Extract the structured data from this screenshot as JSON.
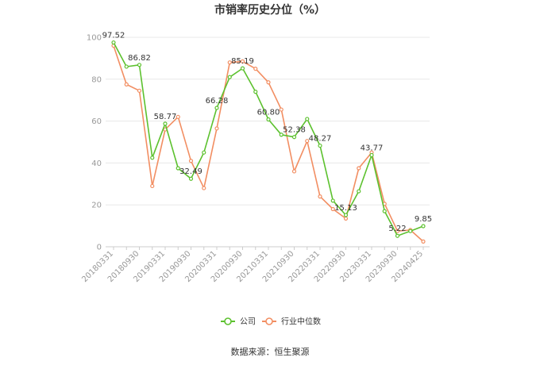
{
  "chart_data": {
    "type": "line",
    "title": "市销率历史分位（%）",
    "source": "数据来源：恒生聚源",
    "ylim": [
      0,
      100
    ],
    "yticks": [
      0,
      20,
      40,
      60,
      80,
      100
    ],
    "grid": true,
    "legend_position": "bottom",
    "x_tick_labels": [
      "20180331",
      "20180930",
      "20190331",
      "20190930",
      "20200331",
      "20200930",
      "20210331",
      "20210930",
      "20220331",
      "20220930",
      "20230331",
      "20230930",
      "20240425"
    ],
    "x": [
      "20180331",
      "20180630",
      "20180930",
      "20181231",
      "20190331",
      "20190630",
      "20190930",
      "20191231",
      "20200331",
      "20200630",
      "20200930",
      "20201231",
      "20210331",
      "20210630",
      "20210930",
      "20211231",
      "20220331",
      "20220630",
      "20220930",
      "20221231",
      "20230331",
      "20230630",
      "20230930",
      "20231231",
      "20240425"
    ],
    "series": [
      {
        "name": "公司",
        "color": "#5cc12e",
        "values": [
          97.52,
          86.0,
          86.82,
          42.5,
          58.77,
          37.5,
          32.49,
          45.0,
          66.28,
          81.0,
          85.19,
          74.0,
          60.8,
          53.5,
          52.38,
          61.0,
          48.27,
          22.0,
          15.13,
          26.5,
          43.77,
          17.0,
          5.22,
          7.5,
          9.85
        ]
      },
      {
        "name": "行业中位数",
        "color": "#f28e62",
        "values": [
          96.0,
          77.5,
          74.5,
          29.0,
          56.0,
          62.0,
          41.0,
          28.0,
          56.5,
          88.0,
          88.5,
          85.0,
          78.5,
          65.5,
          36.0,
          50.5,
          24.0,
          18.0,
          13.5,
          37.5,
          45.0,
          20.5,
          7.5,
          8.0,
          2.5
        ]
      }
    ],
    "data_labels": [
      {
        "index": 0,
        "text": "97.52"
      },
      {
        "index": 2,
        "text": "86.82"
      },
      {
        "index": 4,
        "text": "58.77"
      },
      {
        "index": 6,
        "text": "32.49"
      },
      {
        "index": 8,
        "text": "66.28"
      },
      {
        "index": 10,
        "text": "85.19"
      },
      {
        "index": 12,
        "text": "60.80"
      },
      {
        "index": 14,
        "text": "52.38"
      },
      {
        "index": 16,
        "text": "48.27"
      },
      {
        "index": 18,
        "text": "15.13"
      },
      {
        "index": 20,
        "text": "43.77"
      },
      {
        "index": 22,
        "text": "5.22"
      },
      {
        "index": 24,
        "text": "9.85"
      }
    ]
  }
}
